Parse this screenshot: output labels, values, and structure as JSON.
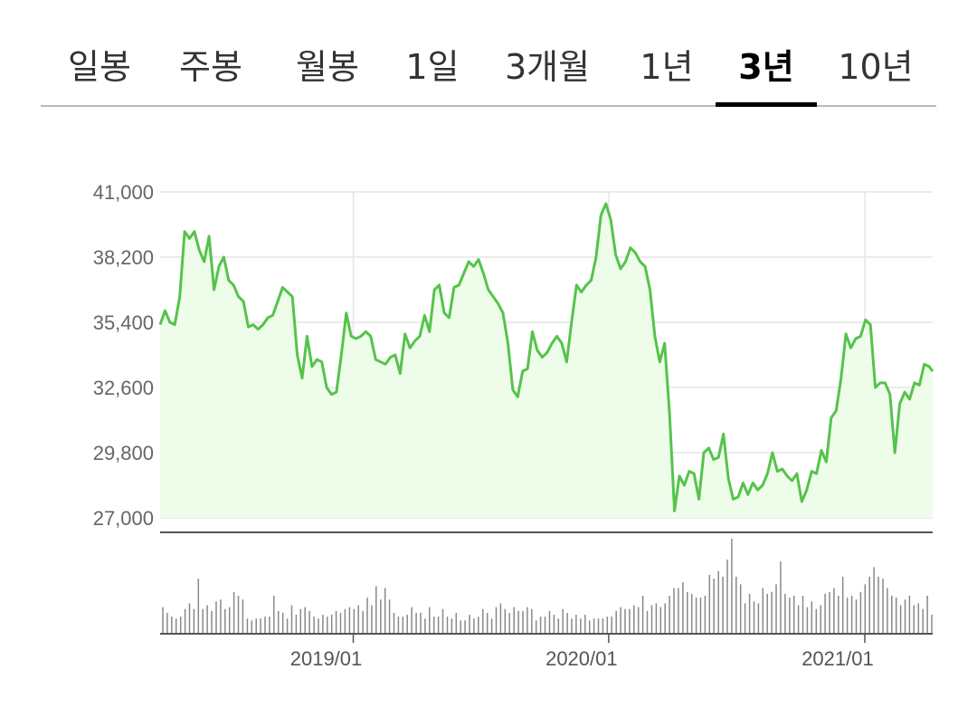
{
  "tabs": [
    {
      "label": "일봉",
      "active": false
    },
    {
      "label": "주봉",
      "active": false
    },
    {
      "label": "월봉",
      "active": false
    },
    {
      "label": "1일",
      "active": false
    },
    {
      "label": "3개월",
      "active": false
    },
    {
      "label": "1년",
      "active": false
    },
    {
      "label": "3년",
      "active": true
    },
    {
      "label": "10년",
      "active": false
    }
  ],
  "colors": {
    "line": "#55c34b",
    "fill": "#eefde9",
    "grid": "#e6e6e6",
    "volume": "#888888",
    "axis": "#555555"
  },
  "chart_data": {
    "type": "line",
    "title": "",
    "xlabel": "",
    "ylabel": "",
    "ylim": [
      27000,
      41000
    ],
    "yticks": [
      "41,000",
      "38,200",
      "35,400",
      "32,600",
      "29,800",
      "27,000"
    ],
    "ytick_values": [
      41000,
      38200,
      35400,
      32600,
      29800,
      27000
    ],
    "xticks": [
      "2019/01",
      "2020/01",
      "2021/01"
    ],
    "xtick_dates": [
      "2019-01-01",
      "2020-01-01",
      "2021-01-01"
    ],
    "grid": true,
    "series": [
      {
        "points": [
          [
            "2018-03-31",
            35300
          ],
          [
            "2018-04-07",
            35900
          ],
          [
            "2018-04-14",
            35400
          ],
          [
            "2018-04-21",
            35300
          ],
          [
            "2018-04-28",
            36500
          ],
          [
            "2018-05-05",
            39300
          ],
          [
            "2018-05-12",
            39000
          ],
          [
            "2018-05-19",
            39300
          ],
          [
            "2018-05-26",
            38500
          ],
          [
            "2018-06-02",
            38000
          ],
          [
            "2018-06-09",
            39100
          ],
          [
            "2018-06-16",
            36800
          ],
          [
            "2018-06-23",
            37800
          ],
          [
            "2018-06-30",
            38200
          ],
          [
            "2018-07-07",
            37200
          ],
          [
            "2018-07-14",
            37000
          ],
          [
            "2018-07-21",
            36500
          ],
          [
            "2018-07-28",
            36300
          ],
          [
            "2018-08-04",
            35200
          ],
          [
            "2018-08-11",
            35300
          ],
          [
            "2018-08-18",
            35100
          ],
          [
            "2018-08-25",
            35300
          ],
          [
            "2018-09-01",
            35600
          ],
          [
            "2018-09-08",
            35700
          ],
          [
            "2018-09-15",
            36300
          ],
          [
            "2018-09-22",
            36900
          ],
          [
            "2018-09-29",
            36700
          ],
          [
            "2018-10-06",
            36500
          ],
          [
            "2018-10-13",
            34000
          ],
          [
            "2018-10-20",
            33000
          ],
          [
            "2018-10-27",
            34800
          ],
          [
            "2018-11-03",
            33500
          ],
          [
            "2018-11-10",
            33800
          ],
          [
            "2018-11-17",
            33700
          ],
          [
            "2018-11-24",
            32600
          ],
          [
            "2018-12-01",
            32300
          ],
          [
            "2018-12-08",
            32400
          ],
          [
            "2018-12-15",
            34000
          ],
          [
            "2018-12-22",
            35800
          ],
          [
            "2018-12-29",
            34800
          ],
          [
            "2019-01-05",
            34700
          ],
          [
            "2019-01-12",
            34800
          ],
          [
            "2019-01-19",
            35000
          ],
          [
            "2019-01-26",
            34800
          ],
          [
            "2019-02-02",
            33800
          ],
          [
            "2019-02-09",
            33700
          ],
          [
            "2019-02-16",
            33600
          ],
          [
            "2019-02-23",
            33900
          ],
          [
            "2019-03-02",
            34000
          ],
          [
            "2019-03-09",
            33200
          ],
          [
            "2019-03-16",
            34900
          ],
          [
            "2019-03-23",
            34300
          ],
          [
            "2019-03-30",
            34600
          ],
          [
            "2019-04-06",
            34800
          ],
          [
            "2019-04-13",
            35700
          ],
          [
            "2019-04-20",
            35000
          ],
          [
            "2019-04-27",
            36800
          ],
          [
            "2019-05-04",
            37000
          ],
          [
            "2019-05-11",
            35800
          ],
          [
            "2019-05-18",
            35600
          ],
          [
            "2019-05-25",
            36900
          ],
          [
            "2019-06-01",
            37000
          ],
          [
            "2019-06-08",
            37500
          ],
          [
            "2019-06-15",
            38000
          ],
          [
            "2019-06-22",
            37800
          ],
          [
            "2019-06-29",
            38100
          ],
          [
            "2019-07-06",
            37500
          ],
          [
            "2019-07-13",
            36800
          ],
          [
            "2019-07-20",
            36500
          ],
          [
            "2019-07-27",
            36200
          ],
          [
            "2019-08-03",
            35800
          ],
          [
            "2019-08-10",
            34500
          ],
          [
            "2019-08-17",
            32500
          ],
          [
            "2019-08-24",
            32200
          ],
          [
            "2019-08-31",
            33300
          ],
          [
            "2019-09-07",
            33400
          ],
          [
            "2019-09-14",
            35000
          ],
          [
            "2019-09-21",
            34200
          ],
          [
            "2019-09-28",
            33900
          ],
          [
            "2019-10-05",
            34100
          ],
          [
            "2019-10-12",
            34500
          ],
          [
            "2019-10-19",
            34800
          ],
          [
            "2019-10-26",
            34500
          ],
          [
            "2019-11-02",
            33700
          ],
          [
            "2019-11-09",
            35400
          ],
          [
            "2019-11-16",
            37000
          ],
          [
            "2019-11-23",
            36700
          ],
          [
            "2019-11-30",
            37000
          ],
          [
            "2019-12-07",
            37200
          ],
          [
            "2019-12-14",
            38200
          ],
          [
            "2019-12-21",
            40000
          ],
          [
            "2019-12-28",
            40500
          ],
          [
            "2020-01-04",
            39800
          ],
          [
            "2020-01-11",
            38300
          ],
          [
            "2020-01-18",
            37700
          ],
          [
            "2020-01-25",
            38000
          ],
          [
            "2020-02-01",
            38600
          ],
          [
            "2020-02-08",
            38400
          ],
          [
            "2020-02-15",
            38000
          ],
          [
            "2020-02-22",
            37800
          ],
          [
            "2020-02-29",
            36800
          ],
          [
            "2020-03-07",
            34800
          ],
          [
            "2020-03-14",
            33700
          ],
          [
            "2020-03-21",
            34500
          ],
          [
            "2020-03-28",
            31500
          ],
          [
            "2020-04-04",
            27300
          ],
          [
            "2020-04-11",
            28800
          ],
          [
            "2020-04-18",
            28400
          ],
          [
            "2020-04-25",
            29000
          ],
          [
            "2020-05-02",
            28900
          ],
          [
            "2020-05-09",
            27800
          ],
          [
            "2020-05-16",
            29800
          ],
          [
            "2020-05-23",
            30000
          ],
          [
            "2020-05-30",
            29500
          ],
          [
            "2020-06-06",
            29600
          ],
          [
            "2020-06-13",
            30600
          ],
          [
            "2020-06-20",
            28700
          ],
          [
            "2020-06-27",
            27800
          ],
          [
            "2020-07-04",
            27900
          ],
          [
            "2020-07-11",
            28500
          ],
          [
            "2020-07-18",
            28000
          ],
          [
            "2020-07-25",
            28500
          ],
          [
            "2020-08-01",
            28200
          ],
          [
            "2020-08-08",
            28400
          ],
          [
            "2020-08-15",
            28900
          ],
          [
            "2020-08-22",
            29800
          ],
          [
            "2020-08-29",
            29000
          ],
          [
            "2020-09-05",
            29100
          ],
          [
            "2020-09-12",
            28800
          ],
          [
            "2020-09-19",
            28600
          ],
          [
            "2020-09-26",
            28900
          ],
          [
            "2020-10-03",
            27700
          ],
          [
            "2020-10-10",
            28200
          ],
          [
            "2020-10-17",
            29000
          ],
          [
            "2020-10-24",
            28900
          ],
          [
            "2020-10-31",
            29900
          ],
          [
            "2020-11-07",
            29400
          ],
          [
            "2020-11-14",
            31300
          ],
          [
            "2020-11-21",
            31600
          ],
          [
            "2020-11-28",
            33000
          ],
          [
            "2020-12-05",
            34900
          ],
          [
            "2020-12-12",
            34300
          ],
          [
            "2020-12-19",
            34700
          ],
          [
            "2020-12-26",
            34800
          ],
          [
            "2021-01-02",
            35500
          ],
          [
            "2021-01-09",
            35300
          ],
          [
            "2021-01-16",
            32600
          ],
          [
            "2021-01-23",
            32800
          ],
          [
            "2021-01-30",
            32800
          ],
          [
            "2021-02-06",
            32300
          ],
          [
            "2021-02-13",
            29800
          ],
          [
            "2021-02-20",
            31900
          ],
          [
            "2021-02-27",
            32400
          ],
          [
            "2021-03-06",
            32100
          ],
          [
            "2021-03-13",
            32800
          ],
          [
            "2021-03-20",
            32700
          ],
          [
            "2021-03-27",
            33600
          ],
          [
            "2021-04-03",
            33500
          ],
          [
            "2021-04-08",
            33300
          ]
        ]
      }
    ],
    "volume": [
      28,
      22,
      18,
      16,
      18,
      26,
      32,
      26,
      58,
      26,
      30,
      24,
      34,
      36,
      26,
      28,
      44,
      40,
      36,
      16,
      14,
      16,
      16,
      18,
      18,
      40,
      24,
      22,
      16,
      30,
      20,
      26,
      28,
      24,
      18,
      16,
      20,
      18,
      20,
      24,
      22,
      26,
      28,
      26,
      30,
      24,
      38,
      30,
      50,
      36,
      48,
      36,
      22,
      18,
      18,
      20,
      28,
      22,
      22,
      16,
      28,
      18,
      18,
      26,
      18,
      16,
      22,
      14,
      14,
      20,
      16,
      18,
      26,
      22,
      16,
      28,
      32,
      26,
      22,
      28,
      24,
      24,
      28,
      26,
      14,
      18,
      18,
      24,
      20,
      16,
      26,
      22,
      16,
      20,
      16,
      20,
      14,
      16,
      16,
      16,
      18,
      18,
      24,
      28,
      26,
      26,
      30,
      28,
      40,
      24,
      30,
      32,
      28,
      32,
      40,
      48,
      48,
      54,
      44,
      42,
      38,
      38,
      40,
      62,
      58,
      66,
      60,
      78,
      100,
      60,
      52,
      32,
      42,
      34,
      32,
      48,
      42,
      44,
      52,
      76,
      42,
      38,
      40,
      30,
      40,
      28,
      34,
      26,
      30,
      42,
      44,
      48,
      40,
      60,
      38,
      40,
      36,
      44,
      52,
      60,
      70,
      60,
      58,
      48,
      40,
      38,
      30,
      36,
      40,
      30,
      32,
      26,
      40,
      20
    ]
  }
}
